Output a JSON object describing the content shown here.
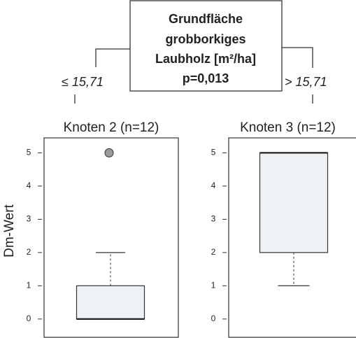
{
  "split_node": {
    "lines": [
      "Grundfläche",
      "grobborkiges",
      "Laubholz [m²/ha]",
      "p=0,013"
    ]
  },
  "edges": [
    "≤ 15,71",
    "> 15,71"
  ],
  "chart_data": [
    {
      "type": "box",
      "title": "Knoten 2 (n=12)",
      "ylabel": "Dm-Wert",
      "ylim": [
        -0.55,
        5.45
      ],
      "yticks": [
        0,
        1,
        2,
        3,
        4,
        5
      ],
      "color": "#eef2f4",
      "flier_color": "#9a9a9a",
      "stats": {
        "whislo": 0,
        "q1": 0,
        "med": 0,
        "q3": 1,
        "whishi": 2,
        "fliers": [
          5
        ]
      }
    },
    {
      "type": "box",
      "title": "Knoten 3 (n=12)",
      "ylim": [
        -0.55,
        5.45
      ],
      "yticks": [
        0,
        1,
        2,
        3,
        4,
        5
      ],
      "color": "#eef2f4",
      "flier_color": "#9a9a9a",
      "stats": {
        "whislo": 1,
        "q1": 2,
        "med": 5,
        "q3": 5,
        "whishi": 5,
        "fliers": []
      }
    }
  ]
}
